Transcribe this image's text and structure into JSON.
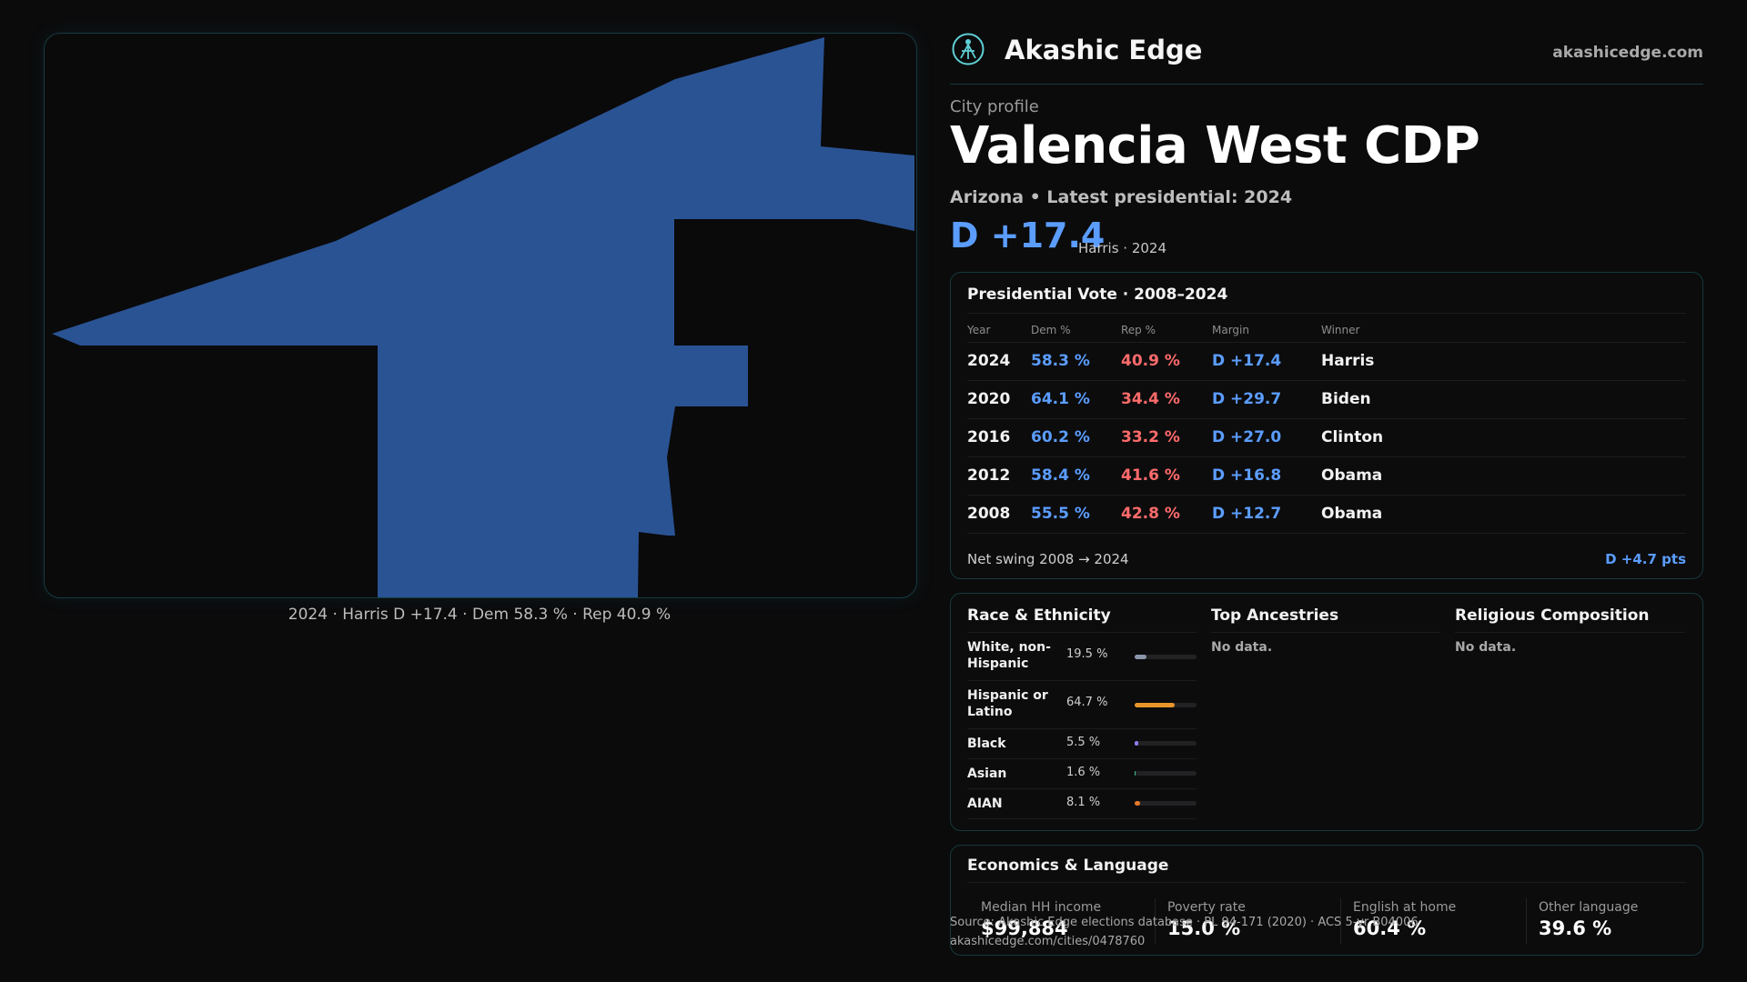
{
  "brand": {
    "name": "Akashic Edge",
    "url": "akashicedge.com",
    "logo_icon": "akashic-edge-logo-icon"
  },
  "profile": {
    "eyebrow": "City profile",
    "city": "Valencia West CDP",
    "subline": "Arizona • Latest presidential: 2024",
    "margin": "D +17.4",
    "margin_sub": "Harris · 2024"
  },
  "map": {
    "caption": "2024 · Harris D +17.4 · Dem 58.3 % · Rep 40.9 %",
    "fill_color": "#2a5394"
  },
  "votes": {
    "title": "Presidential Vote · 2008–2024",
    "headers": [
      "Year",
      "Dem %",
      "Rep %",
      "Margin",
      "Winner"
    ],
    "rows": [
      {
        "year": "2024",
        "dem": "58.3 %",
        "rep": "40.9 %",
        "margin": "D +17.4",
        "winner": "Harris"
      },
      {
        "year": "2020",
        "dem": "64.1 %",
        "rep": "34.4 %",
        "margin": "D +29.7",
        "winner": "Biden"
      },
      {
        "year": "2016",
        "dem": "60.2 %",
        "rep": "33.2 %",
        "margin": "D +27.0",
        "winner": "Clinton"
      },
      {
        "year": "2012",
        "dem": "58.4 %",
        "rep": "41.6 %",
        "margin": "D +16.8",
        "winner": "Obama"
      },
      {
        "year": "2008",
        "dem": "55.5 %",
        "rep": "42.8 %",
        "margin": "D +12.7",
        "winner": "Obama"
      }
    ],
    "net_label": "Net swing 2008 → 2024",
    "net_value": "D +4.7 pts"
  },
  "race": {
    "title": "Race & Ethnicity",
    "rows": [
      {
        "label": "White, non-Hispanic",
        "pct": "19.5 %",
        "value": 19.5,
        "color": "#8a95a8"
      },
      {
        "label": "Hispanic or Latino",
        "pct": "64.7 %",
        "value": 64.7,
        "color": "#e8962a"
      },
      {
        "label": "Black",
        "pct": "5.5 %",
        "value": 5.5,
        "color": "#8f7cf0"
      },
      {
        "label": "Asian",
        "pct": "1.6 %",
        "value": 1.6,
        "color": "#3fbf8f"
      },
      {
        "label": "AIAN",
        "pct": "8.1 %",
        "value": 8.1,
        "color": "#e8782a"
      }
    ]
  },
  "ancestries": {
    "title": "Top Ancestries",
    "empty": "No data."
  },
  "religion": {
    "title": "Religious Composition",
    "empty": "No data."
  },
  "economics": {
    "title": "Economics & Language",
    "stats": [
      {
        "label": "Median HH income",
        "value": "$99,884"
      },
      {
        "label": "Poverty rate",
        "value": "15.0 %"
      },
      {
        "label": "English at home",
        "value": "60.4 %"
      },
      {
        "label": "Other language",
        "value": "39.6 %"
      }
    ]
  },
  "source": {
    "line1": "Source: Akashic Edge elections database · PL 94-171 (2020) · ACS 5-yr B04006",
    "line2": "akashicedge.com/cities/0478760"
  }
}
